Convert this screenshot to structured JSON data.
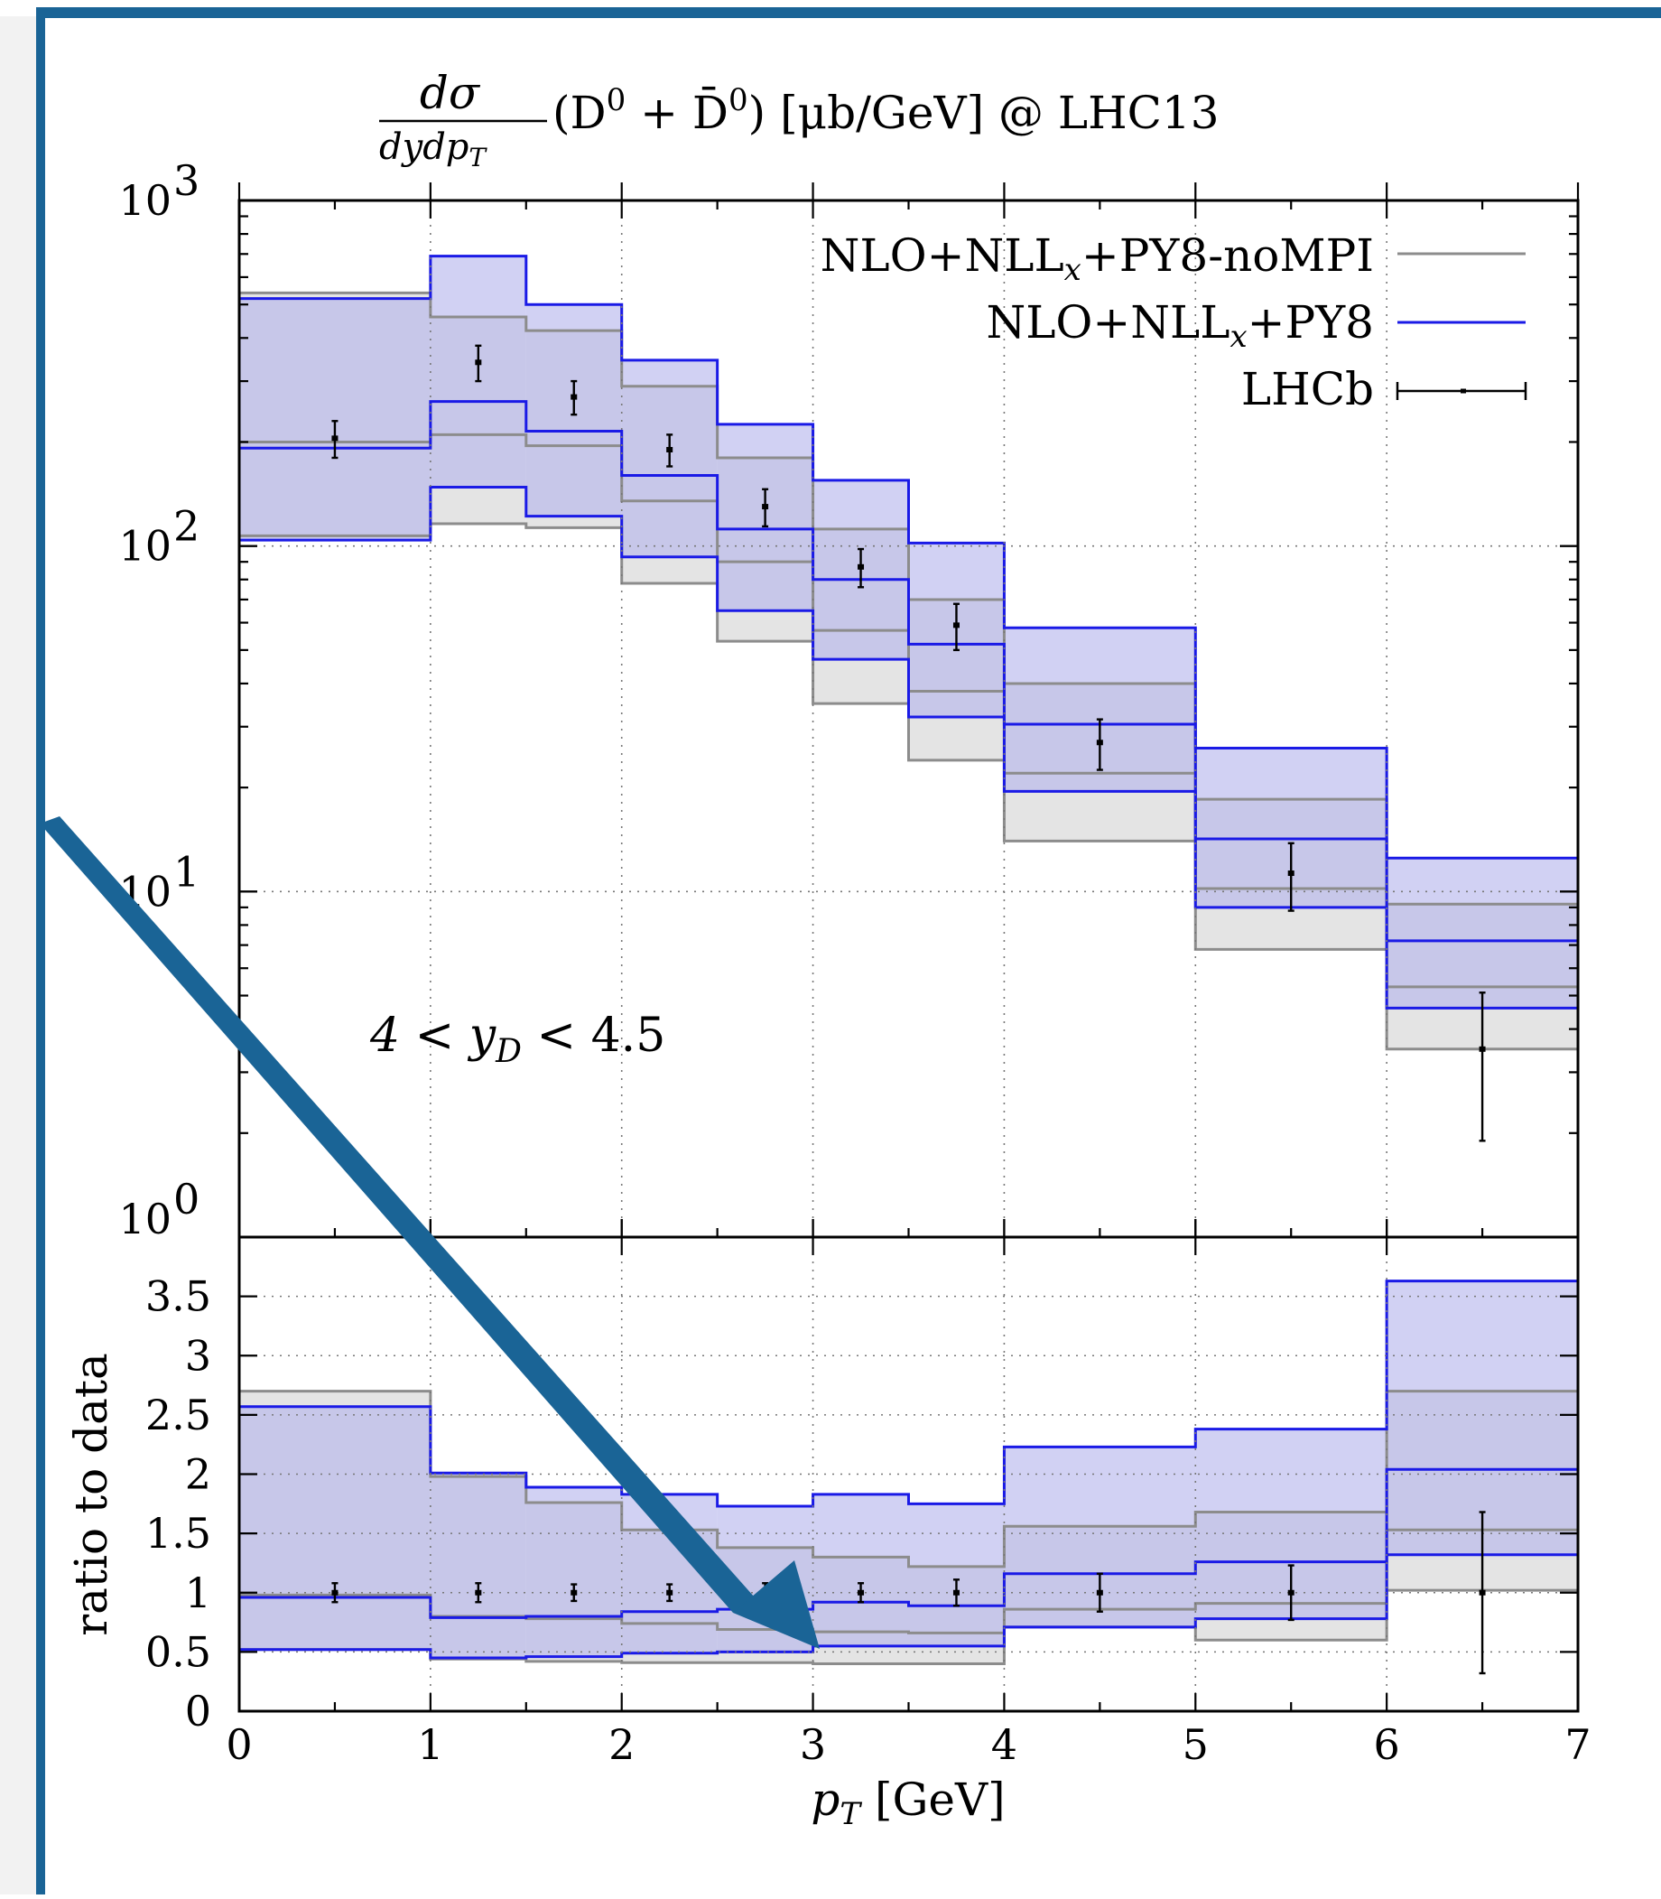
{
  "colors": {
    "noMPI_band": "#e4e4e4",
    "noMPI_line": "#8c8c8c",
    "mpi_band": "#b4b4ec",
    "mpi_line": "#1a1ae6",
    "data": "#000000",
    "frame_accent": "#1a6496"
  },
  "chart_data": [
    {
      "type": "line",
      "panel": "main",
      "title": "dσ/dydp_T (D⁰ + D̄⁰) [μb/GeV]  @ LHC13",
      "title_parts": {
        "frac_num": "dσ",
        "frac_den": "dydp",
        "frac_den_sub": "T",
        "rest": "(D",
        "sup1": "0",
        "plus": " + D̄",
        "sup2": "0",
        "units": ")  [μb/GeV]   @ LHC13"
      },
      "annotation": "4 < y_D < 4.5",
      "annotation_parts": {
        "pre": "4 < y",
        "sub": "D",
        "post": " < 4.5"
      },
      "yscale": "log",
      "ylim": [
        1,
        1000
      ],
      "y_tick_labels": [
        "10^0",
        "10^1",
        "10^2",
        "10^3"
      ],
      "y_tick_parts": [
        {
          "base": "10",
          "exp": "0"
        },
        {
          "base": "10",
          "exp": "1"
        },
        {
          "base": "10",
          "exp": "2"
        },
        {
          "base": "10",
          "exp": "3"
        }
      ],
      "xlim": [
        0,
        7
      ],
      "grid": true,
      "legend_position": "top-right",
      "legend": [
        {
          "label_parts": {
            "pre": "NLO+NLL",
            "sub": "x",
            "post": "+PY8-noMPI"
          },
          "style": "gray-line"
        },
        {
          "label_parts": {
            "pre": "NLO+NLL",
            "sub": "x",
            "post": "+PY8"
          },
          "style": "blue-line"
        },
        {
          "label_parts": {
            "pre": "LHCb",
            "sub": "",
            "post": ""
          },
          "style": "errorbar"
        }
      ],
      "bins": [
        [
          0,
          1
        ],
        [
          1,
          1.5
        ],
        [
          1.5,
          2
        ],
        [
          2,
          2.5
        ],
        [
          2.5,
          3
        ],
        [
          3,
          3.5
        ],
        [
          3.5,
          4
        ],
        [
          4,
          5
        ],
        [
          5,
          6
        ],
        [
          6,
          7
        ]
      ],
      "series": [
        {
          "name": "NLO+NLL_x+PY8-noMPI",
          "upper": [
            540,
            460,
            420,
            290,
            180,
            112,
            70,
            40,
            18.5,
            9.2
          ],
          "central": [
            200,
            210,
            195,
            135,
            90,
            57,
            38,
            22,
            10.2,
            5.3
          ],
          "lower": [
            107,
            116,
            113,
            78,
            53,
            35,
            24,
            14,
            6.8,
            3.5
          ]
        },
        {
          "name": "NLO+NLL_x+PY8",
          "upper": [
            520,
            690,
            500,
            345,
            225,
            155,
            102,
            58,
            26,
            12.5
          ],
          "central": [
            192,
            262,
            215,
            160,
            112,
            80,
            52,
            30.5,
            14.2,
            7.2
          ],
          "lower": [
            104,
            148,
            122,
            93,
            65,
            47,
            32,
            19.5,
            9,
            4.6
          ]
        },
        {
          "name": "LHCb",
          "x": [
            0.5,
            1.25,
            1.75,
            2.25,
            2.75,
            3.25,
            3.75,
            4.5,
            5.5,
            6.5
          ],
          "y": [
            205,
            340,
            270,
            190,
            130,
            87,
            59,
            27,
            11.3,
            3.5
          ],
          "y_err": [
            25,
            40,
            30,
            20,
            16,
            11,
            9,
            4.5,
            2.5,
            1.6
          ]
        }
      ]
    },
    {
      "type": "line",
      "panel": "ratio",
      "ylabel": "ratio to data",
      "xlabel": "p_T [GeV]",
      "xlabel_parts": {
        "pre": "p",
        "sub": "T",
        "post": " [GeV]"
      },
      "ylim": [
        0,
        4
      ],
      "y_ticks": [
        0,
        0.5,
        1,
        1.5,
        2,
        2.5,
        3,
        3.5
      ],
      "y_tick_labels": [
        "0",
        "0.5",
        "1",
        "1.5",
        "2",
        "2.5",
        "3",
        "3.5"
      ],
      "x_ticks": [
        0,
        1,
        2,
        3,
        4,
        5,
        6,
        7
      ],
      "x_tick_labels": [
        "0",
        "1",
        "2",
        "3",
        "4",
        "5",
        "6",
        "7"
      ],
      "grid": true,
      "bins": [
        [
          0,
          1
        ],
        [
          1,
          1.5
        ],
        [
          1.5,
          2
        ],
        [
          2,
          2.5
        ],
        [
          2.5,
          3
        ],
        [
          3,
          3.5
        ],
        [
          3.5,
          4
        ],
        [
          4,
          5
        ],
        [
          5,
          6
        ],
        [
          6,
          7
        ]
      ],
      "series": [
        {
          "name": "NLO+NLL_x+PY8-noMPI",
          "upper": [
            2.7,
            1.98,
            1.76,
            1.53,
            1.38,
            1.3,
            1.22,
            1.56,
            1.68,
            2.7
          ],
          "central": [
            0.98,
            0.8,
            0.78,
            0.74,
            0.69,
            0.67,
            0.66,
            0.86,
            0.91,
            1.53
          ],
          "lower": [
            0.52,
            0.44,
            0.42,
            0.41,
            0.41,
            0.4,
            0.4,
            0.71,
            0.6,
            1.02
          ]
        },
        {
          "name": "NLO+NLL_x+PY8",
          "upper": [
            2.57,
            2.01,
            1.89,
            1.83,
            1.73,
            1.83,
            1.75,
            2.23,
            2.38,
            3.63
          ],
          "central": [
            0.96,
            0.79,
            0.8,
            0.84,
            0.86,
            0.92,
            0.89,
            1.16,
            1.26,
            2.04
          ],
          "lower": [
            0.52,
            0.45,
            0.46,
            0.49,
            0.5,
            0.55,
            0.55,
            0.71,
            0.78,
            1.32
          ]
        },
        {
          "name": "LHCb",
          "x": [
            0.5,
            1.25,
            1.75,
            2.25,
            2.75,
            3.25,
            3.75,
            4.5,
            5.5,
            6.5
          ],
          "y": [
            1,
            1,
            1,
            1,
            1,
            1,
            1,
            1,
            1,
            1
          ],
          "y_err": [
            0.08,
            0.08,
            0.07,
            0.07,
            0.08,
            0.08,
            0.11,
            0.16,
            0.23,
            0.68
          ]
        }
      ]
    }
  ]
}
